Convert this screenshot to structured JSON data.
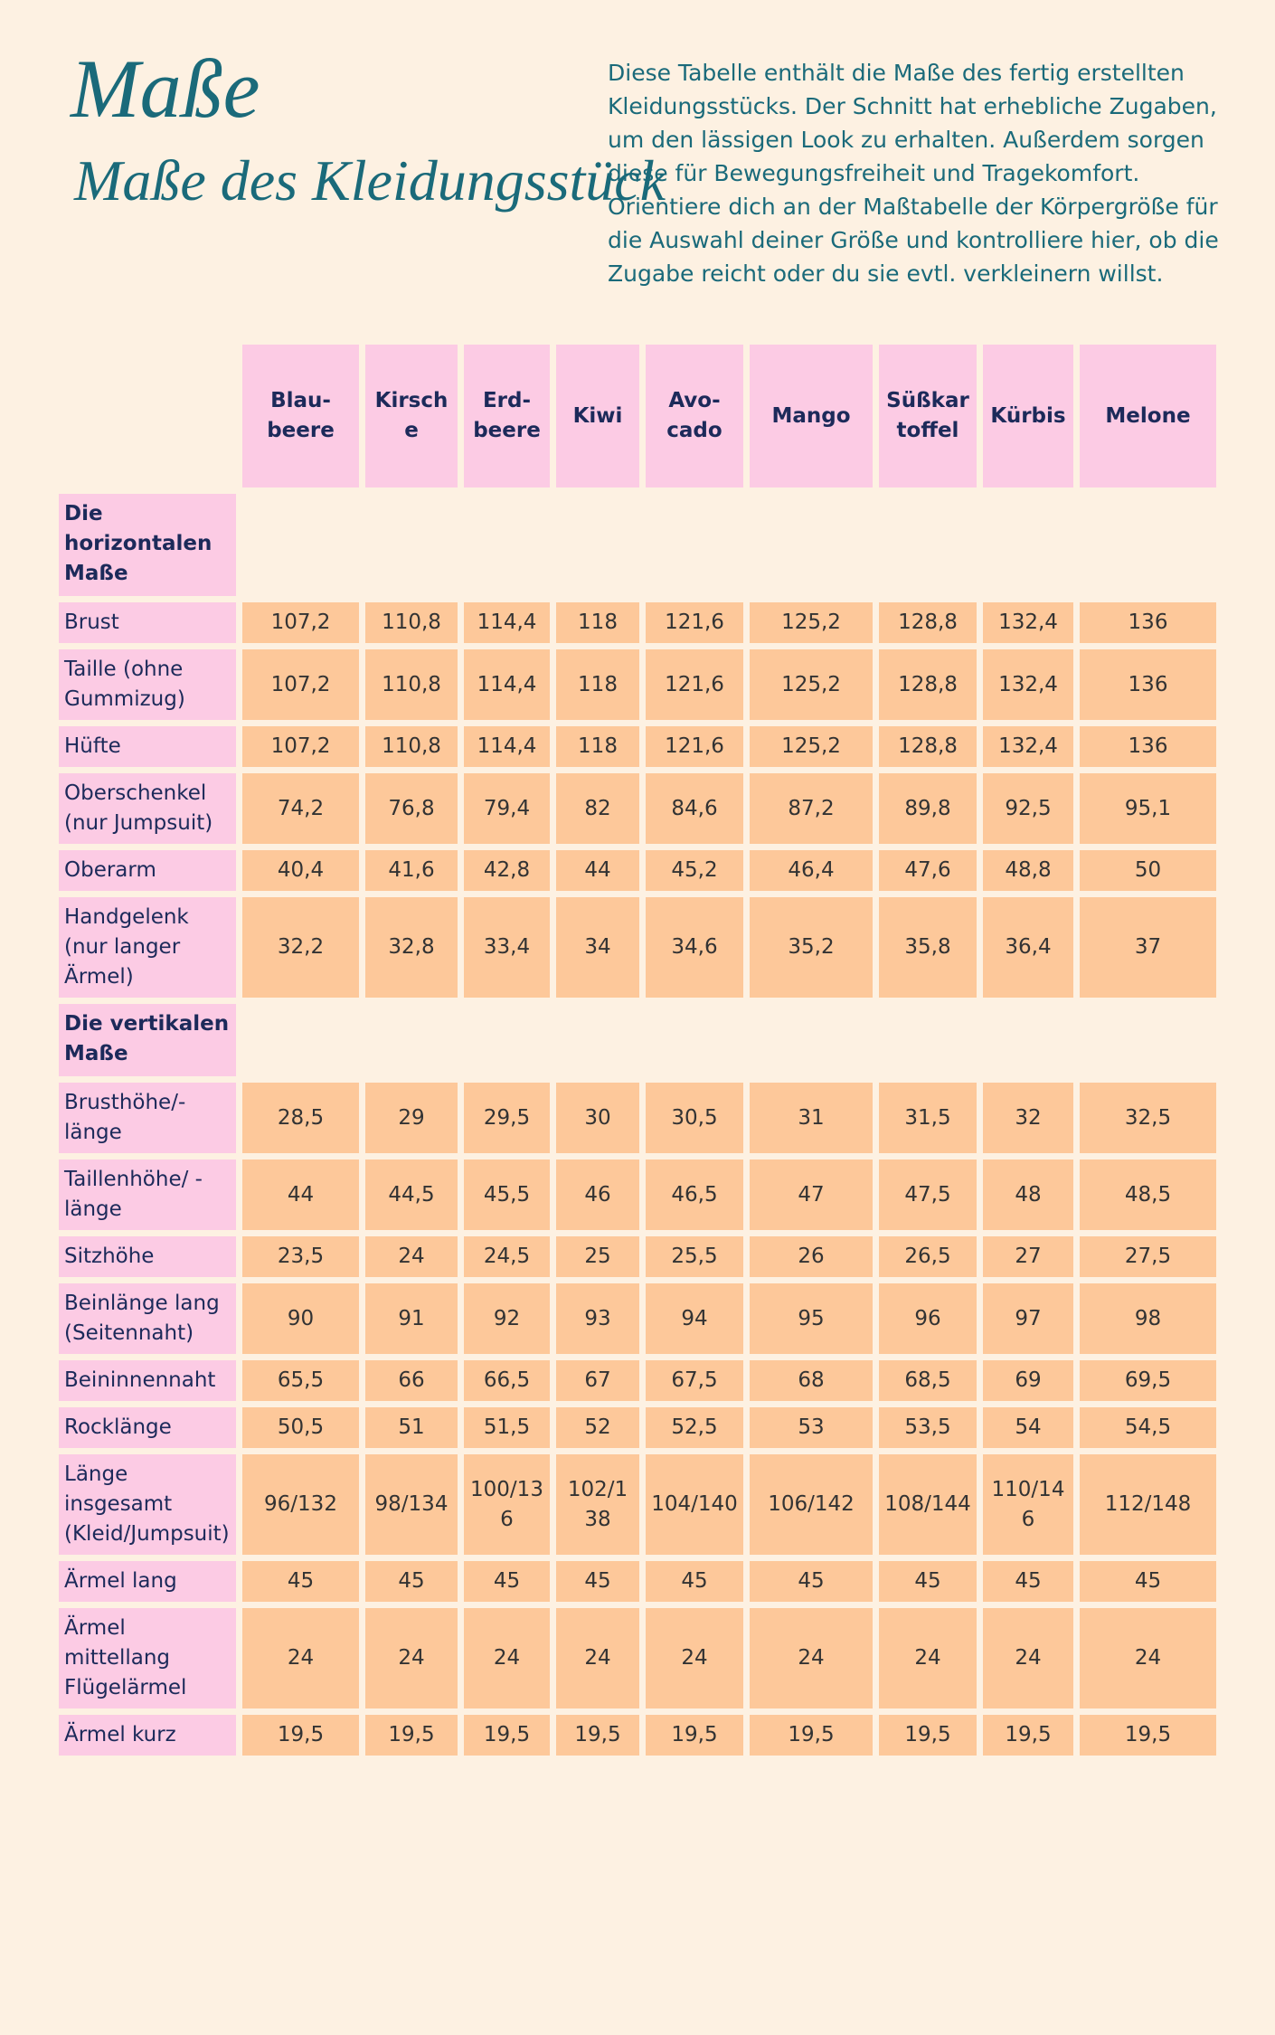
{
  "header": {
    "title": "Maße",
    "subtitle": "Maße des Kleidungsstück",
    "description": "Diese Tabelle enthält die Maße des fertig erstellten Kleidungsstücks.  Der Schnitt hat erhebliche Zugaben, um den lässigen Look zu erhalten. Außerdem sorgen diese für Bewegungsfreiheit und Tragekomfort. Orientiere dich an der Maßtabelle der Körpergröße für die Auswahl deiner Größe und kontrolliere hier, ob die Zugabe reicht oder du sie evtl. verkleinern willst."
  },
  "table": {
    "columns": [
      "Blau-beere",
      "Kirsche",
      "Erd-beere",
      "Kiwi",
      "Avo-cado",
      "Mango",
      "Süßkartoffel",
      "Kürbis",
      "Melone"
    ],
    "sections": [
      {
        "title": "Die horizontalen Maße",
        "rows": [
          {
            "label": "Brust",
            "values": [
              "107,2",
              "110,8",
              "114,4",
              "118",
              "121,6",
              "125,2",
              "128,8",
              "132,4",
              "136"
            ]
          },
          {
            "label": "Taille (ohne Gummizug)",
            "values": [
              "107,2",
              "110,8",
              "114,4",
              "118",
              "121,6",
              "125,2",
              "128,8",
              "132,4",
              "136"
            ]
          },
          {
            "label": "Hüfte",
            "values": [
              "107,2",
              "110,8",
              "114,4",
              "118",
              "121,6",
              "125,2",
              "128,8",
              "132,4",
              "136"
            ]
          },
          {
            "label": "Oberschenkel (nur Jumpsuit)",
            "values": [
              "74,2",
              "76,8",
              "79,4",
              "82",
              "84,6",
              "87,2",
              "89,8",
              "92,5",
              "95,1"
            ]
          },
          {
            "label": "Oberarm",
            "values": [
              "40,4",
              "41,6",
              "42,8",
              "44",
              "45,2",
              "46,4",
              "47,6",
              "48,8",
              "50"
            ]
          },
          {
            "label": "Handgelenk (nur langer Ärmel)",
            "values": [
              "32,2",
              "32,8",
              "33,4",
              "34",
              "34,6",
              "35,2",
              "35,8",
              "36,4",
              "37"
            ]
          }
        ]
      },
      {
        "title": "Die vertikalen Maße",
        "rows": [
          {
            "label": "Brusthöhe/-länge",
            "values": [
              "28,5",
              "29",
              "29,5",
              "30",
              "30,5",
              "31",
              "31,5",
              "32",
              "32,5"
            ]
          },
          {
            "label": "Taillenhöhe/ -länge",
            "values": [
              "44",
              "44,5",
              "45,5",
              "46",
              "46,5",
              "47",
              "47,5",
              "48",
              "48,5"
            ]
          },
          {
            "label": "Sitzhöhe",
            "values": [
              "23,5",
              "24",
              "24,5",
              "25",
              "25,5",
              "26",
              "26,5",
              "27",
              "27,5"
            ]
          },
          {
            "label": "Beinlänge lang (Seitennaht)",
            "values": [
              "90",
              "91",
              "92",
              "93",
              "94",
              "95",
              "96",
              "97",
              "98"
            ]
          },
          {
            "label": "Beininnennaht",
            "values": [
              "65,5",
              "66",
              "66,5",
              "67",
              "67,5",
              "68",
              "68,5",
              "69",
              "69,5"
            ]
          },
          {
            "label": "Rocklänge",
            "values": [
              "50,5",
              "51",
              "51,5",
              "52",
              "52,5",
              "53",
              "53,5",
              "54",
              "54,5"
            ]
          },
          {
            "label": "Länge insgesamt (Kleid/Jumpsuit)",
            "values": [
              "96/132",
              "98/134",
              "100/136",
              "102/138",
              "104/140",
              "106/142",
              "108/144",
              "110/146",
              "112/148"
            ]
          },
          {
            "label": "Ärmel lang",
            "values": [
              "45",
              "45",
              "45",
              "45",
              "45",
              "45",
              "45",
              "45",
              "45"
            ]
          },
          {
            "label": "Ärmel mittellang Flügelärmel",
            "values": [
              "24",
              "24",
              "24",
              "24",
              "24",
              "24",
              "24",
              "24",
              "24"
            ]
          },
          {
            "label": "Ärmel kurz",
            "values": [
              "19,5",
              "19,5",
              "19,5",
              "19,5",
              "19,5",
              "19,5",
              "19,5",
              "19,5",
              "19,5"
            ]
          }
        ]
      }
    ]
  }
}
